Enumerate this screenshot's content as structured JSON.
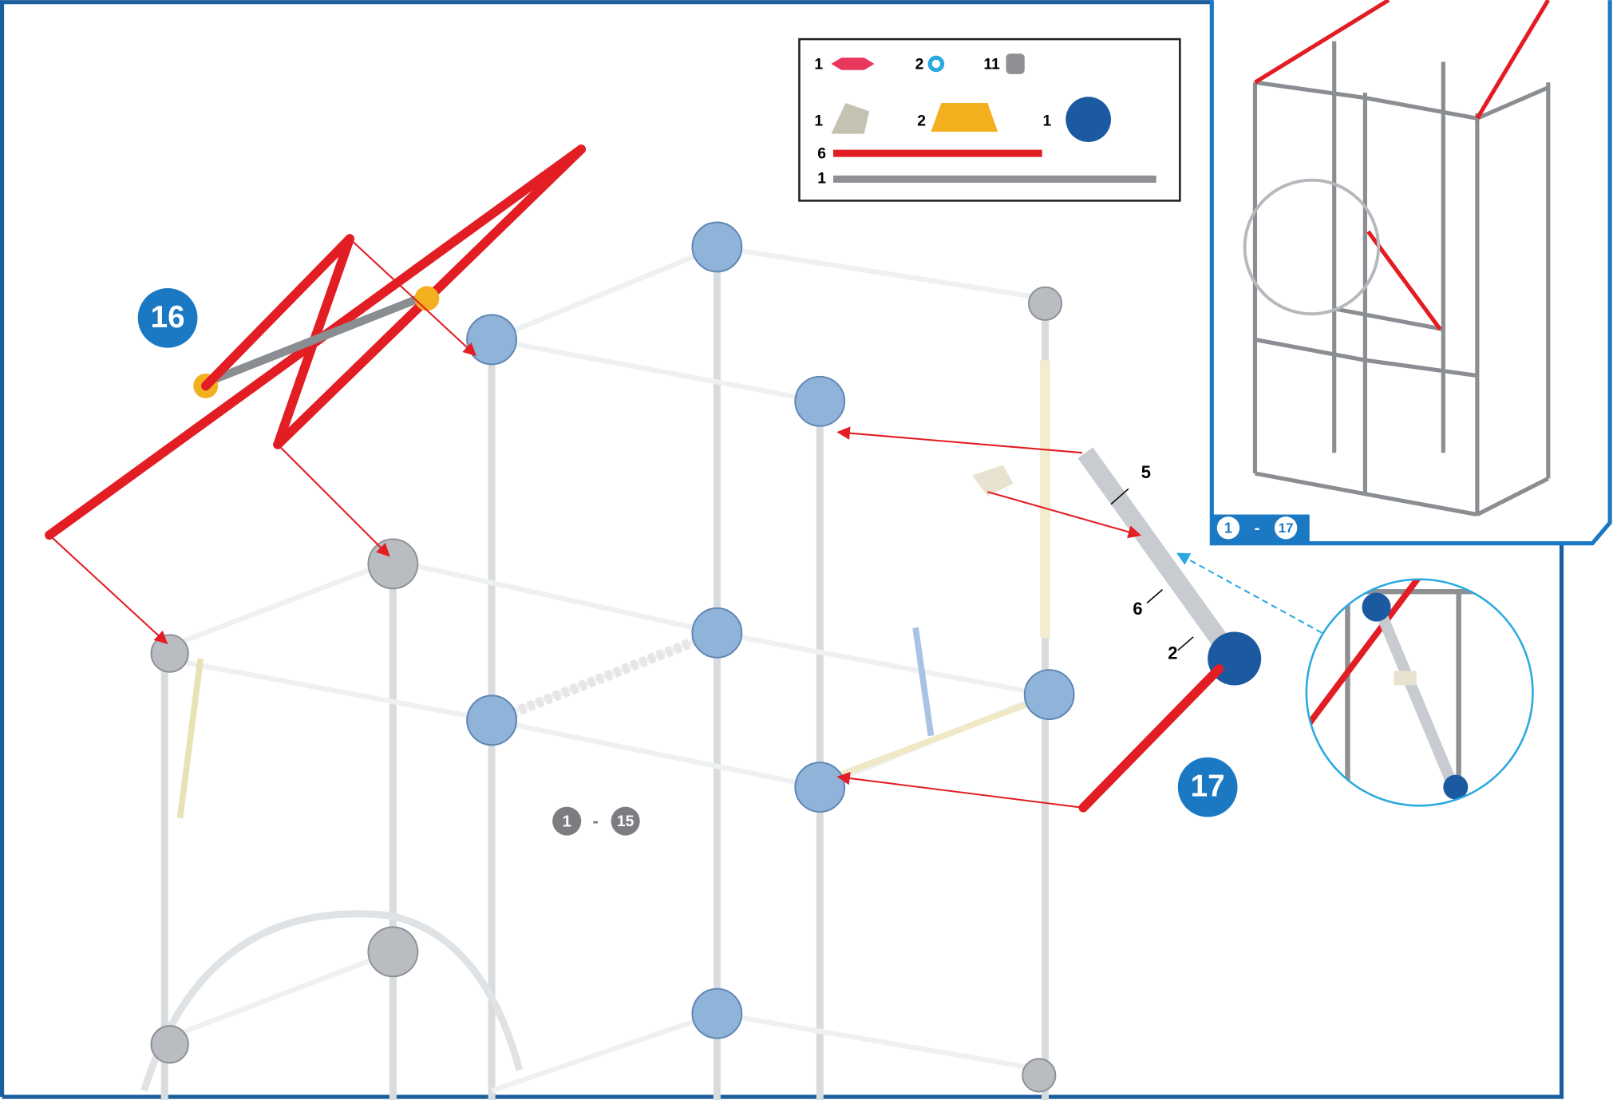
{
  "steps": [
    {
      "number": "16"
    },
    {
      "number": "17"
    }
  ],
  "ranges": [
    {
      "from": "1",
      "separator": "-",
      "to": "15"
    },
    {
      "from": "1",
      "separator": "-",
      "to": "17"
    }
  ],
  "parts": {
    "counts": [
      "1",
      "2",
      "11",
      "1",
      "2",
      "1",
      "6",
      "1"
    ]
  },
  "callouts": [
    "5",
    "6",
    "2"
  ]
}
